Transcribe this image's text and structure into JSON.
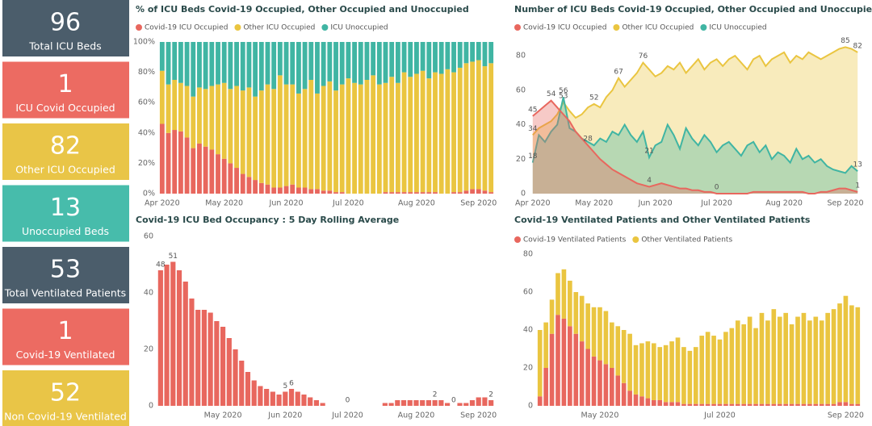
{
  "cards": [
    {
      "value": 96,
      "label": "Total ICU Beds",
      "color": "#4b5d6b"
    },
    {
      "value": 1,
      "label": "ICU Covid Occupied",
      "color": "#ec6b62"
    },
    {
      "value": 82,
      "label": "Other ICU Occupied",
      "color": "#e9c547"
    },
    {
      "value": 13,
      "label": "Unoccupied Beds",
      "color": "#47bcab"
    },
    {
      "value": 53,
      "label": "Total Ventilated Patients",
      "color": "#4b5d6b"
    },
    {
      "value": 1,
      "label": "Covid-19 Ventilated",
      "color": "#ec6b62"
    },
    {
      "value": 52,
      "label": "Non Covid-19 Ventilated",
      "color": "#e9c547"
    }
  ],
  "chart_data": [
    {
      "type": "stacked_bar",
      "title": "% of ICU Beds Covid-19 Occupied, Other Occupied and Unoccupied",
      "categories": [
        "Apr 2020",
        null,
        null,
        null,
        null,
        null,
        null,
        null,
        null,
        null,
        "May 2020",
        null,
        null,
        null,
        null,
        null,
        null,
        null,
        null,
        null,
        "Jun 2020",
        null,
        null,
        null,
        null,
        null,
        null,
        null,
        null,
        null,
        "Jul 2020",
        null,
        null,
        null,
        null,
        null,
        null,
        null,
        null,
        null,
        null,
        "Aug 2020",
        null,
        null,
        null,
        null,
        null,
        null,
        null,
        null,
        null,
        "Sep 2020",
        null,
        null
      ],
      "series": [
        {
          "name": "Covid-19 ICU Occupied",
          "color": "#e8675e",
          "values": [
            46,
            40,
            42,
            41,
            37,
            30,
            33,
            31,
            29,
            26,
            23,
            20,
            17,
            13,
            11,
            9,
            7,
            6,
            4,
            4,
            5,
            6,
            4,
            4,
            3,
            3,
            2,
            2,
            1,
            1,
            0,
            0,
            0,
            0,
            0,
            0,
            1,
            1,
            1,
            1,
            1,
            1,
            1,
            1,
            1,
            0,
            0,
            1,
            1,
            2,
            3,
            3,
            2,
            1
          ]
        },
        {
          "name": "Other ICU Occupied",
          "color": "#eac540",
          "values": [
            35,
            32,
            33,
            32,
            34,
            34,
            37,
            38,
            42,
            46,
            50,
            49,
            54,
            55,
            59,
            55,
            61,
            66,
            65,
            74,
            67,
            66,
            62,
            65,
            72,
            63,
            69,
            72,
            67,
            71,
            76,
            73,
            72,
            75,
            78,
            72,
            72,
            76,
            72,
            79,
            76,
            78,
            80,
            75,
            79,
            79,
            82,
            79,
            82,
            84,
            84,
            85,
            82,
            85
          ]
        },
        {
          "name": "ICU Unoccupied",
          "color": "#40b5a3",
          "values": [
            19,
            28,
            25,
            27,
            29,
            36,
            30,
            31,
            29,
            28,
            27,
            31,
            29,
            32,
            30,
            36,
            32,
            28,
            31,
            22,
            28,
            28,
            34,
            31,
            25,
            34,
            29,
            26,
            32,
            28,
            24,
            27,
            28,
            25,
            22,
            28,
            27,
            23,
            27,
            20,
            23,
            21,
            19,
            24,
            20,
            21,
            18,
            20,
            17,
            14,
            13,
            12,
            16,
            14
          ]
        }
      ],
      "ylim": [
        0,
        100
      ],
      "yticks": [
        {
          "value": 0,
          "label": "0%"
        },
        {
          "value": 20,
          "label": "20%"
        },
        {
          "value": 40,
          "label": "40%"
        },
        {
          "value": 60,
          "label": "60%"
        },
        {
          "value": 80,
          "label": "80%"
        },
        {
          "value": 100,
          "label": "100%"
        }
      ]
    },
    {
      "type": "area",
      "title": "Number of ICU Beds Covid-19 Occupied, Other Occupied and Unoccupied",
      "categories": [
        "Apr 2020",
        null,
        null,
        null,
        null,
        null,
        null,
        null,
        null,
        null,
        "May 2020",
        null,
        null,
        null,
        null,
        null,
        null,
        null,
        null,
        null,
        "Jun 2020",
        null,
        null,
        null,
        null,
        null,
        null,
        null,
        null,
        null,
        "Jul 2020",
        null,
        null,
        null,
        null,
        null,
        null,
        null,
        null,
        null,
        null,
        "Aug 2020",
        null,
        null,
        null,
        null,
        null,
        null,
        null,
        null,
        null,
        "Sep 2020",
        null,
        null
      ],
      "series": [
        {
          "name": "Covid-19 ICU Occupied",
          "color": "#e8675e",
          "label_indices": [
            0,
            3,
            9,
            19,
            30,
            53
          ],
          "values": [
            45,
            48,
            51,
            54,
            50,
            46,
            42,
            36,
            32,
            28,
            24,
            20,
            17,
            14,
            12,
            10,
            8,
            6,
            5,
            4,
            5,
            6,
            5,
            4,
            3,
            3,
            2,
            2,
            1,
            1,
            0,
            0,
            0,
            0,
            0,
            0,
            1,
            1,
            1,
            1,
            1,
            1,
            1,
            1,
            1,
            0,
            0,
            1,
            1,
            2,
            3,
            3,
            2,
            1
          ]
        },
        {
          "name": "Other ICU Occupied",
          "color": "#eac540",
          "label_indices": [
            0,
            5,
            10,
            14,
            18,
            51,
            53
          ],
          "values": [
            34,
            38,
            40,
            42,
            46,
            53,
            48,
            44,
            46,
            50,
            52,
            50,
            56,
            60,
            67,
            62,
            66,
            70,
            76,
            72,
            68,
            70,
            74,
            72,
            76,
            70,
            74,
            78,
            72,
            76,
            78,
            74,
            78,
            80,
            76,
            72,
            78,
            80,
            74,
            78,
            80,
            82,
            76,
            80,
            78,
            82,
            80,
            78,
            80,
            82,
            84,
            85,
            84,
            82
          ]
        },
        {
          "name": "ICU Unoccupied",
          "color": "#40b5a3",
          "label_indices": [
            0,
            5,
            19,
            53
          ],
          "values": [
            18,
            34,
            30,
            36,
            40,
            56,
            38,
            36,
            32,
            30,
            28,
            32,
            30,
            36,
            34,
            40,
            34,
            30,
            36,
            21,
            28,
            30,
            40,
            34,
            26,
            38,
            32,
            28,
            34,
            30,
            24,
            28,
            30,
            26,
            22,
            28,
            30,
            24,
            28,
            20,
            24,
            22,
            18,
            26,
            20,
            22,
            18,
            20,
            16,
            14,
            13,
            12,
            16,
            13
          ]
        }
      ],
      "ylim": [
        0,
        88
      ],
      "yticks": [
        0,
        20,
        40,
        60,
        80
      ]
    },
    {
      "type": "bar",
      "title": "Covid-19 ICU Bed Occupancy : 5 Day Rolling Average",
      "color": "#e8675e",
      "categories": [
        null,
        null,
        null,
        null,
        null,
        null,
        null,
        null,
        null,
        null,
        "May 2020",
        null,
        null,
        null,
        null,
        null,
        null,
        null,
        null,
        null,
        "Jun 2020",
        null,
        null,
        null,
        null,
        null,
        null,
        null,
        null,
        null,
        "Jul 2020",
        null,
        null,
        null,
        null,
        null,
        null,
        null,
        null,
        null,
        null,
        "Aug 2020",
        null,
        null,
        null,
        null,
        null,
        null,
        null,
        null,
        null,
        "Sep 2020",
        null,
        null
      ],
      "values": [
        48,
        50,
        51,
        48,
        44,
        38,
        34,
        34,
        33,
        30,
        28,
        24,
        20,
        16,
        12,
        9,
        7,
        6,
        5,
        4,
        5,
        6,
        5,
        4,
        3,
        2,
        1,
        0,
        0,
        0,
        0,
        0,
        0,
        0,
        0,
        0,
        1,
        1,
        2,
        2,
        2,
        2,
        2,
        2,
        2,
        2,
        1,
        0,
        1,
        1,
        2,
        3,
        3,
        2
      ],
      "label_indices": [
        0,
        2,
        20,
        21,
        30,
        44,
        47,
        53
      ],
      "ylim": [
        0,
        60
      ],
      "yticks": [
        0,
        20,
        40,
        60
      ]
    },
    {
      "type": "stacked_bar",
      "title": "Covid-19 Ventilated Patients and Other Ventilated Patients",
      "categories": [
        null,
        null,
        null,
        null,
        null,
        null,
        null,
        null,
        null,
        null,
        "May 2020",
        null,
        null,
        null,
        null,
        null,
        null,
        null,
        null,
        null,
        null,
        null,
        null,
        null,
        null,
        null,
        null,
        null,
        null,
        null,
        "Jul 2020",
        null,
        null,
        null,
        null,
        null,
        null,
        null,
        null,
        null,
        null,
        null,
        null,
        null,
        null,
        null,
        null,
        null,
        null,
        null,
        null,
        "Sep 2020",
        null,
        null
      ],
      "series": [
        {
          "name": "Covid-19 Ventilated Patients",
          "color": "#e8675e",
          "values": [
            5,
            20,
            38,
            48,
            46,
            42,
            38,
            34,
            30,
            26,
            24,
            22,
            20,
            16,
            12,
            8,
            6,
            5,
            4,
            3,
            3,
            2,
            2,
            2,
            1,
            1,
            1,
            1,
            1,
            1,
            1,
            1,
            1,
            1,
            1,
            1,
            1,
            1,
            1,
            1,
            1,
            1,
            1,
            1,
            1,
            1,
            1,
            1,
            1,
            1,
            2,
            2,
            1,
            1
          ]
        },
        {
          "name": "Other Ventilated Patients",
          "color": "#eac540",
          "values": [
            35,
            24,
            18,
            22,
            26,
            24,
            22,
            24,
            24,
            26,
            28,
            28,
            24,
            26,
            28,
            30,
            26,
            28,
            30,
            30,
            28,
            30,
            32,
            34,
            30,
            28,
            30,
            36,
            38,
            36,
            34,
            38,
            40,
            44,
            42,
            46,
            40,
            48,
            44,
            50,
            46,
            48,
            42,
            46,
            48,
            44,
            46,
            44,
            48,
            50,
            52,
            56,
            52,
            51
          ]
        }
      ],
      "ylim": [
        0,
        80
      ],
      "yticks": [
        0,
        20,
        40,
        60,
        80
      ]
    }
  ]
}
